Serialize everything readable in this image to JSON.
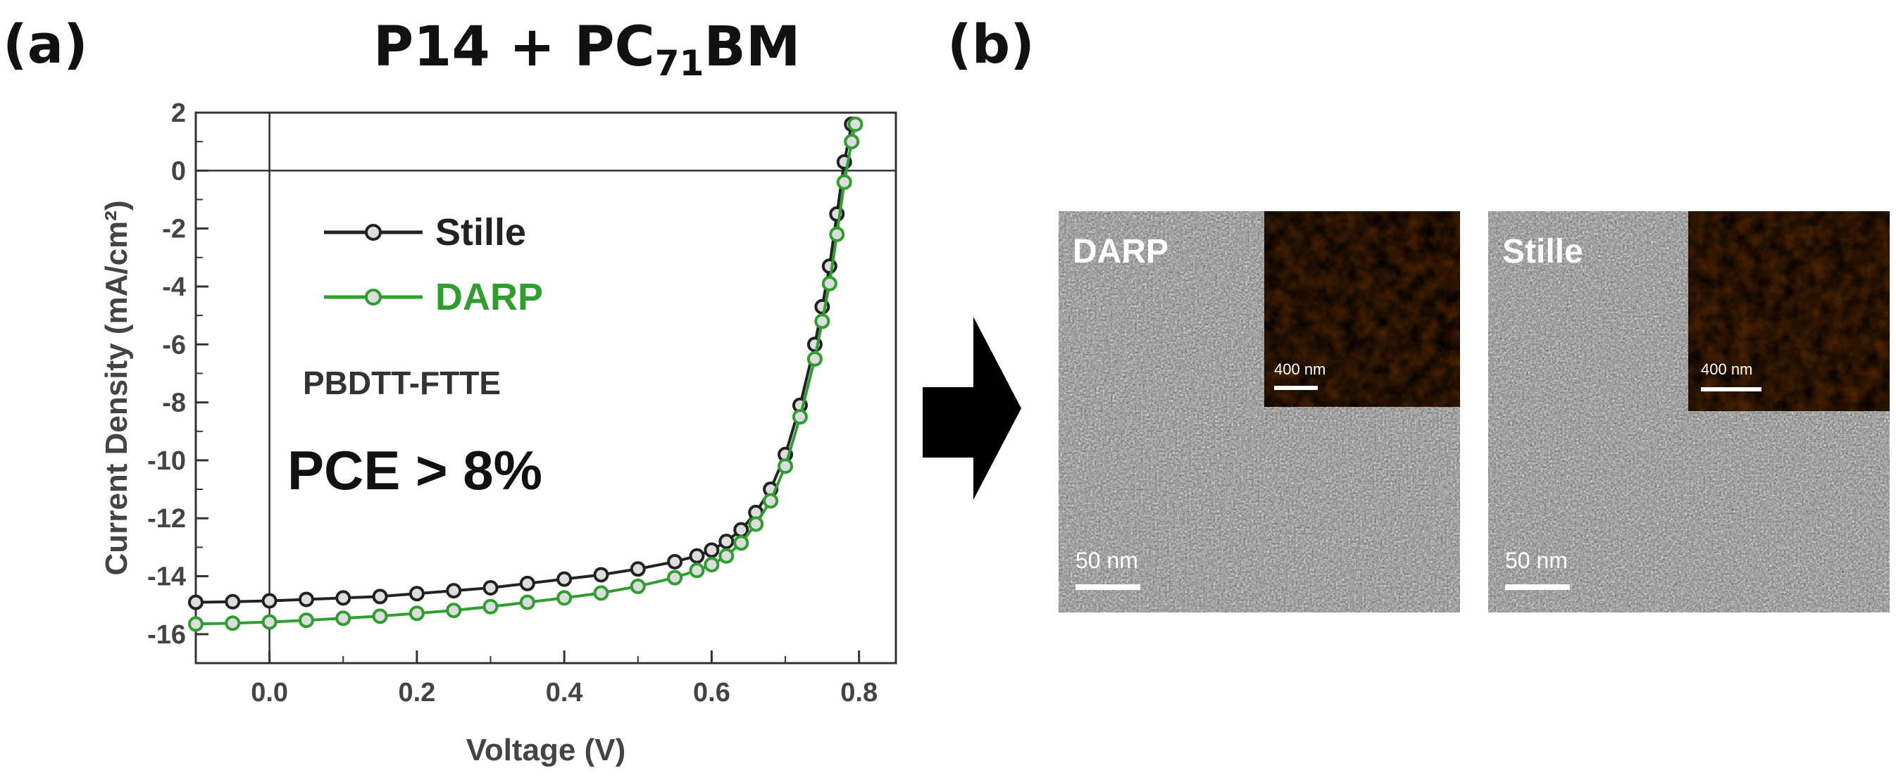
{
  "panel_a_label": "(a)",
  "panel_b_label": "(b)",
  "title": {
    "main": "P14 + PC",
    "sub": "71",
    "tail": "BM"
  },
  "chart_data": {
    "type": "line",
    "title": "P14 + PC71BM",
    "xlabel": "Voltage (V)",
    "ylabel": "Current Density (mA/cm²)",
    "xlim": [
      -0.1,
      0.85
    ],
    "ylim": [
      -17,
      2
    ],
    "x_ticks": [
      0.0,
      0.2,
      0.4,
      0.6,
      0.8
    ],
    "x_tick_labels": [
      "0.0",
      "0.2",
      "0.4",
      "0.6",
      "0.8"
    ],
    "y_ticks": [
      2,
      0,
      -2,
      -4,
      -6,
      -8,
      -10,
      -12,
      -14,
      -16
    ],
    "y_tick_labels": [
      "2",
      "0",
      "-2",
      "-4",
      "-6",
      "-8",
      "-10",
      "-12",
      "-14",
      "-16"
    ],
    "reference_lines": {
      "x": 0,
      "y": 0
    },
    "legend_position": "top-left",
    "series": [
      {
        "name": "Stille",
        "color": "#222222",
        "x": [
          -0.1,
          -0.05,
          0.0,
          0.05,
          0.1,
          0.15,
          0.2,
          0.25,
          0.3,
          0.35,
          0.4,
          0.45,
          0.5,
          0.55,
          0.58,
          0.6,
          0.62,
          0.64,
          0.66,
          0.68,
          0.7,
          0.72,
          0.74,
          0.75,
          0.76,
          0.77,
          0.78,
          0.79
        ],
        "y": [
          -14.9,
          -14.88,
          -14.85,
          -14.8,
          -14.75,
          -14.7,
          -14.6,
          -14.5,
          -14.4,
          -14.25,
          -14.1,
          -13.95,
          -13.75,
          -13.5,
          -13.3,
          -13.1,
          -12.8,
          -12.4,
          -11.8,
          -11.0,
          -9.8,
          -8.1,
          -6.0,
          -4.7,
          -3.3,
          -1.5,
          0.3,
          1.6
        ]
      },
      {
        "name": "DARP",
        "color": "#2e9e2e",
        "x": [
          -0.1,
          -0.05,
          0.0,
          0.05,
          0.1,
          0.15,
          0.2,
          0.25,
          0.3,
          0.35,
          0.4,
          0.45,
          0.5,
          0.55,
          0.58,
          0.6,
          0.62,
          0.64,
          0.66,
          0.68,
          0.7,
          0.72,
          0.74,
          0.75,
          0.76,
          0.77,
          0.78,
          0.79,
          0.795
        ],
        "y": [
          -15.65,
          -15.62,
          -15.58,
          -15.52,
          -15.45,
          -15.38,
          -15.28,
          -15.18,
          -15.05,
          -14.9,
          -14.75,
          -14.58,
          -14.35,
          -14.05,
          -13.8,
          -13.6,
          -13.3,
          -12.85,
          -12.2,
          -11.4,
          -10.2,
          -8.5,
          -6.5,
          -5.2,
          -3.9,
          -2.2,
          -0.4,
          1.0,
          1.6
        ]
      }
    ],
    "annotations": [
      "PBDTT-FTTE",
      "PCE > 8%"
    ]
  },
  "images": [
    {
      "label": "DARP",
      "scale": "50 nm",
      "inset_scale": "400 nm"
    },
    {
      "label": "Stille",
      "scale": "50 nm",
      "inset_scale": "400 nm"
    }
  ],
  "arrow": "right-arrow",
  "colors": {
    "stille": "#222222",
    "darp": "#2e9e2e",
    "afm_dark": "#3a1a00",
    "afm_light": "#f0c060"
  }
}
